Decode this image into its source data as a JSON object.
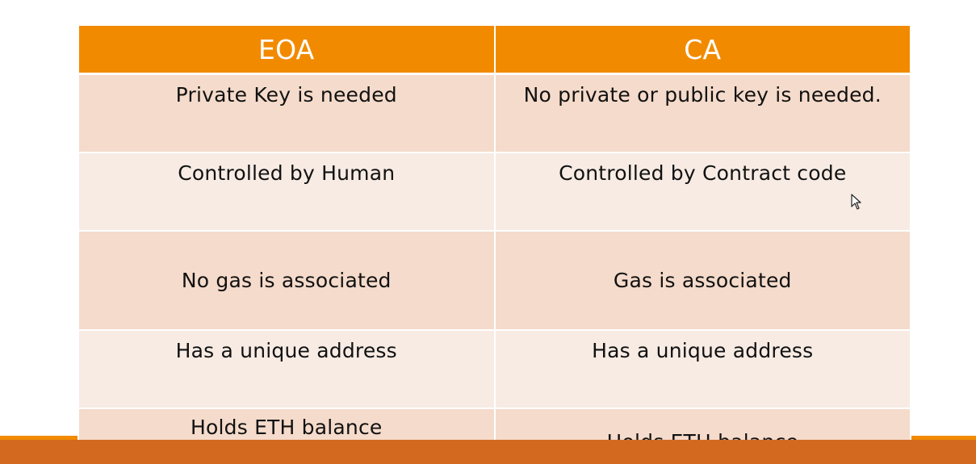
{
  "table": {
    "headers": [
      "EOA",
      "CA"
    ],
    "rows": [
      [
        "Private Key is needed",
        "No private or public key is needed."
      ],
      [
        "Controlled by Human",
        "Controlled by Contract code"
      ],
      [
        "No gas is associated",
        "Gas is associated"
      ],
      [
        "Has a unique address",
        "Has a unique address"
      ],
      [
        "Holds ETH balance",
        "Holds ETH balance"
      ]
    ]
  },
  "colors": {
    "header_bg": "#f28a00",
    "row_odd_bg": "#f5dbcb",
    "row_even_bg": "#f7ebe4",
    "bottom_band": "#d2691f"
  },
  "icons": {
    "cursor": "mouse-pointer-icon"
  }
}
